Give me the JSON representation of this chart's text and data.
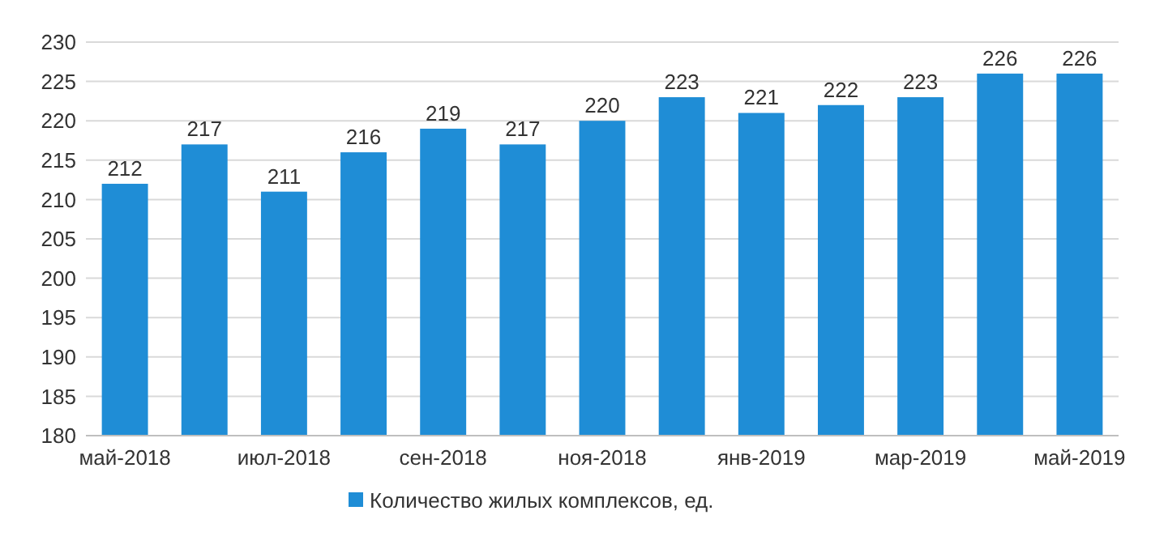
{
  "chart_data": {
    "type": "bar",
    "categories": [
      "май-2018",
      null,
      "июл-2018",
      null,
      "сен-2018",
      null,
      "ноя-2018",
      null,
      "янв-2019",
      null,
      "мар-2019",
      null,
      "май-2019"
    ],
    "series": [
      {
        "name": "Количество жилых комплексов, ед.",
        "color": "#1f8dd6",
        "values": [
          212,
          217,
          211,
          216,
          219,
          217,
          220,
          223,
          221,
          222,
          223,
          226,
          226
        ]
      }
    ],
    "ylim": [
      180,
      230
    ],
    "yticks": [
      180,
      185,
      190,
      195,
      200,
      205,
      210,
      215,
      220,
      225,
      230
    ],
    "grid": "y",
    "legend": "bottom",
    "data_labels": true
  }
}
